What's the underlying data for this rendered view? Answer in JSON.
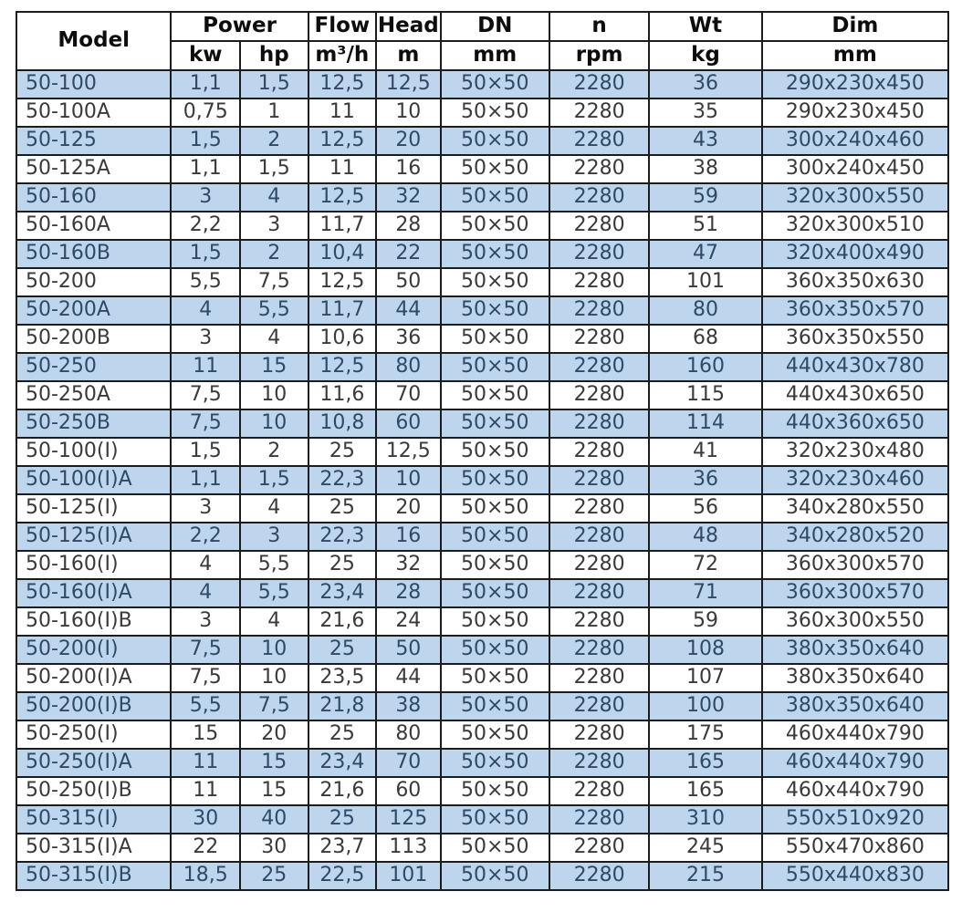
{
  "colors": {
    "stripe_blue": "#bdd6ee",
    "row_white": "#ffffff",
    "grid_border": "#1c1c1c",
    "header_text": "#0d0d0d",
    "blue_row_text": "#2e4a66",
    "white_row_text": "#3a3a3a"
  },
  "chart_data": {
    "type": "table",
    "header": {
      "model": "Model",
      "power": "Power",
      "flow": "Flow",
      "head": "Head",
      "dn": "DN",
      "n": "n",
      "wt": "Wt",
      "dim": "Dim"
    },
    "units": {
      "kw": "kw",
      "hp": "hp",
      "flow": "m³/h",
      "head": "m",
      "dn": "mm",
      "n": "rpm",
      "wt": "kg",
      "dim": "mm"
    },
    "rows": [
      [
        "50-100",
        "1,1",
        "1,5",
        "12,5",
        "12,5",
        "50×50",
        "2280",
        "36",
        "290x230x450"
      ],
      [
        "50-100A",
        "0,75",
        "1",
        "11",
        "10",
        "50×50",
        "2280",
        "35",
        "290x230x450"
      ],
      [
        "50-125",
        "1,5",
        "2",
        "12,5",
        "20",
        "50×50",
        "2280",
        "43",
        "300x240x460"
      ],
      [
        "50-125A",
        "1,1",
        "1,5",
        "11",
        "16",
        "50×50",
        "2280",
        "38",
        "300x240x450"
      ],
      [
        "50-160",
        "3",
        "4",
        "12,5",
        "32",
        "50×50",
        "2280",
        "59",
        "320x300x550"
      ],
      [
        "50-160A",
        "2,2",
        "3",
        "11,7",
        "28",
        "50×50",
        "2280",
        "51",
        "320x300x510"
      ],
      [
        "50-160B",
        "1,5",
        "2",
        "10,4",
        "22",
        "50×50",
        "2280",
        "47",
        "320x400x490"
      ],
      [
        "50-200",
        "5,5",
        "7,5",
        "12,5",
        "50",
        "50×50",
        "2280",
        "101",
        "360x350x630"
      ],
      [
        "50-200A",
        "4",
        "5,5",
        "11,7",
        "44",
        "50×50",
        "2280",
        "80",
        "360x350x570"
      ],
      [
        "50-200B",
        "3",
        "4",
        "10,6",
        "36",
        "50×50",
        "2280",
        "68",
        "360x350x550"
      ],
      [
        "50-250",
        "11",
        "15",
        "12,5",
        "80",
        "50×50",
        "2280",
        "160",
        "440x430x780"
      ],
      [
        "50-250A",
        "7,5",
        "10",
        "11,6",
        "70",
        "50×50",
        "2280",
        "115",
        "440x430x650"
      ],
      [
        "50-250B",
        "7,5",
        "10",
        "10,8",
        "60",
        "50×50",
        "2280",
        "114",
        "440x360x650"
      ],
      [
        "50-100(I)",
        "1,5",
        "2",
        "25",
        "12,5",
        "50×50",
        "2280",
        "41",
        "320x230x480"
      ],
      [
        "50-100(I)A",
        "1,1",
        "1,5",
        "22,3",
        "10",
        "50×50",
        "2280",
        "36",
        "320x230x460"
      ],
      [
        "50-125(I)",
        "3",
        "4",
        "25",
        "20",
        "50×50",
        "2280",
        "56",
        "340x280x550"
      ],
      [
        "50-125(I)A",
        "2,2",
        "3",
        "22,3",
        "16",
        "50×50",
        "2280",
        "48",
        "340x280x520"
      ],
      [
        "50-160(I)",
        "4",
        "5,5",
        "25",
        "32",
        "50×50",
        "2280",
        "72",
        "360x300x570"
      ],
      [
        "50-160(I)A",
        "4",
        "5,5",
        "23,4",
        "28",
        "50×50",
        "2280",
        "71",
        "360x300x570"
      ],
      [
        "50-160(I)B",
        "3",
        "4",
        "21,6",
        "24",
        "50×50",
        "2280",
        "59",
        "360x300x550"
      ],
      [
        "50-200(I)",
        "7,5",
        "10",
        "25",
        "50",
        "50×50",
        "2280",
        "108",
        "380x350x640"
      ],
      [
        "50-200(I)A",
        "7,5",
        "10",
        "23,5",
        "44",
        "50×50",
        "2280",
        "107",
        "380x350x640"
      ],
      [
        "50-200(I)B",
        "5,5",
        "7,5",
        "21,8",
        "38",
        "50×50",
        "2280",
        "100",
        "380x350x640"
      ],
      [
        "50-250(I)",
        "15",
        "20",
        "25",
        "80",
        "50×50",
        "2280",
        "175",
        "460x440x790"
      ],
      [
        "50-250(I)A",
        "11",
        "15",
        "23,4",
        "70",
        "50×50",
        "2280",
        "165",
        "460x440x790"
      ],
      [
        "50-250(I)B",
        "11",
        "15",
        "21,6",
        "60",
        "50×50",
        "2280",
        "165",
        "460x440x790"
      ],
      [
        "50-315(I)",
        "30",
        "40",
        "25",
        "125",
        "50×50",
        "2280",
        "310",
        "550x510x920"
      ],
      [
        "50-315(I)A",
        "22",
        "30",
        "23,7",
        "113",
        "50×50",
        "2280",
        "245",
        "550x470x860"
      ],
      [
        "50-315(I)B",
        "18,5",
        "25",
        "22,5",
        "101",
        "50×50",
        "2280",
        "215",
        "550x440x830"
      ]
    ]
  }
}
